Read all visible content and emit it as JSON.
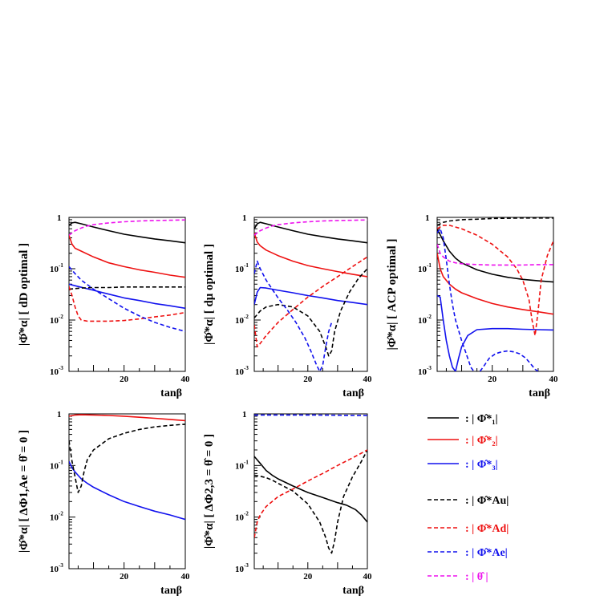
{
  "colors": {
    "phi1": "#000000",
    "phi2": "#ee1111",
    "phi3": "#1111ee",
    "phiAu": "#000000",
    "phiAd": "#ee1111",
    "phiAe": "#1111ee",
    "theta": "#ee11ee"
  },
  "legend": [
    {
      "key": "phi1",
      "dash": "solid",
      "text": ": | Φ̂*₁|"
    },
    {
      "key": "phi2",
      "dash": "solid",
      "text": ": | Φ̂*₂|"
    },
    {
      "key": "phi3",
      "dash": "solid",
      "text": ": | Φ̂*₃|"
    },
    {
      "key": "phiAu",
      "dash": "dashed",
      "text": ": | Φ̂*Au|"
    },
    {
      "key": "phiAd",
      "dash": "dashed",
      "text": ": | Φ̂*Ad|"
    },
    {
      "key": "phiAe",
      "dash": "dashed",
      "text": ": | Φ̂*Ae|"
    },
    {
      "key": "theta",
      "dash": "dashed",
      "text": ": | θ̂ |"
    }
  ],
  "chart_data": [
    {
      "type": "line",
      "title": "",
      "xlabel": "tanβ",
      "ylabel": "|Φ̂*α| [ dD optimal ]",
      "xlim": [
        2,
        40
      ],
      "ylim": [
        0.001,
        1
      ],
      "yscale": "log",
      "xticks": [
        "20",
        "40"
      ],
      "yticks": [
        "10-3",
        "10-2",
        "10-1",
        "1"
      ],
      "series": [
        {
          "key": "phi1",
          "x": [
            2,
            3,
            4,
            6,
            10,
            15,
            20,
            25,
            30,
            35,
            40
          ],
          "y": [
            0.7,
            0.78,
            0.8,
            0.75,
            0.65,
            0.55,
            0.47,
            0.42,
            0.38,
            0.35,
            0.32
          ]
        },
        {
          "key": "phi2",
          "x": [
            2,
            3,
            4,
            6,
            10,
            15,
            20,
            25,
            30,
            35,
            40
          ],
          "y": [
            0.45,
            0.3,
            0.25,
            0.22,
            0.17,
            0.13,
            0.11,
            0.095,
            0.085,
            0.075,
            0.068
          ]
        },
        {
          "key": "phi3",
          "x": [
            2,
            5,
            10,
            15,
            20,
            25,
            30,
            35,
            40
          ],
          "y": [
            0.05,
            0.045,
            0.038,
            0.032,
            0.027,
            0.024,
            0.021,
            0.019,
            0.017
          ]
        },
        {
          "key": "phiAu",
          "x": [
            2,
            4,
            6,
            10,
            15,
            20,
            30,
            40
          ],
          "y": [
            0.04,
            0.041,
            0.042,
            0.043,
            0.043,
            0.044,
            0.044,
            0.044
          ]
        },
        {
          "key": "phiAd",
          "x": [
            2,
            3,
            4,
            5,
            6,
            8,
            10,
            15,
            20,
            25,
            30,
            35,
            40
          ],
          "y": [
            0.045,
            0.03,
            0.018,
            0.012,
            0.01,
            0.0095,
            0.0095,
            0.0095,
            0.0098,
            0.0105,
            0.0115,
            0.0125,
            0.014
          ]
        },
        {
          "key": "phiAe",
          "x": [
            2,
            4,
            6,
            10,
            15,
            20,
            25,
            30,
            35,
            40
          ],
          "y": [
            0.11,
            0.08,
            0.06,
            0.04,
            0.026,
            0.017,
            0.012,
            0.009,
            0.0072,
            0.006
          ]
        },
        {
          "key": "theta",
          "x": [
            2,
            4,
            6,
            8,
            10,
            15,
            20,
            25,
            30,
            35,
            40
          ],
          "y": [
            0.45,
            0.55,
            0.62,
            0.68,
            0.72,
            0.78,
            0.82,
            0.85,
            0.87,
            0.88,
            0.89
          ]
        }
      ]
    },
    {
      "type": "line",
      "title": "",
      "xlabel": "tanβ",
      "ylabel": "|Φ̂*α| [ dμ optimal ]",
      "xlim": [
        2,
        40
      ],
      "ylim": [
        0.001,
        1
      ],
      "yscale": "log",
      "xticks": [
        "20",
        "40"
      ],
      "yticks": [
        "10-3",
        "10-2",
        "10-1",
        "1"
      ],
      "series": [
        {
          "key": "phi1",
          "x": [
            2,
            3,
            4,
            6,
            10,
            15,
            20,
            25,
            30,
            35,
            40
          ],
          "y": [
            0.6,
            0.75,
            0.8,
            0.75,
            0.65,
            0.55,
            0.47,
            0.42,
            0.38,
            0.35,
            0.32
          ]
        },
        {
          "key": "phi2",
          "x": [
            2,
            3,
            4,
            6,
            10,
            15,
            20,
            25,
            30,
            35,
            40
          ],
          "y": [
            0.5,
            0.33,
            0.28,
            0.23,
            0.18,
            0.14,
            0.115,
            0.1,
            0.088,
            0.078,
            0.07
          ]
        },
        {
          "key": "phi3",
          "x": [
            2,
            3,
            4,
            6,
            10,
            15,
            20,
            25,
            30,
            35,
            40
          ],
          "y": [
            0.02,
            0.035,
            0.043,
            0.042,
            0.038,
            0.034,
            0.03,
            0.027,
            0.024,
            0.022,
            0.02
          ]
        },
        {
          "key": "phiAu",
          "x": [
            2,
            4,
            6,
            10,
            15,
            20,
            24,
            26,
            27,
            28,
            29,
            31,
            34,
            37,
            40
          ],
          "y": [
            0.011,
            0.015,
            0.018,
            0.02,
            0.018,
            0.012,
            0.006,
            0.003,
            0.002,
            0.0025,
            0.006,
            0.015,
            0.035,
            0.065,
            0.1
          ]
        },
        {
          "key": "phiAd",
          "x": [
            2,
            3,
            4,
            6,
            10,
            15,
            20,
            25,
            30,
            35,
            40
          ],
          "y": [
            0.008,
            0.003,
            0.0035,
            0.005,
            0.009,
            0.016,
            0.028,
            0.045,
            0.07,
            0.11,
            0.17
          ]
        },
        {
          "key": "phiAe",
          "x": [
            2,
            3,
            4,
            6,
            8,
            10,
            13,
            16,
            19,
            21,
            23,
            24,
            25,
            26,
            27,
            28
          ],
          "y": [
            0.08,
            0.14,
            0.1,
            0.06,
            0.04,
            0.027,
            0.016,
            0.009,
            0.0045,
            0.0025,
            0.0013,
            0.001,
            0.0013,
            0.003,
            0.006,
            0.009
          ]
        },
        {
          "key": "theta",
          "x": [
            2,
            4,
            6,
            8,
            10,
            15,
            20,
            25,
            30,
            35,
            40
          ],
          "y": [
            0.45,
            0.55,
            0.62,
            0.68,
            0.72,
            0.78,
            0.82,
            0.85,
            0.87,
            0.88,
            0.89
          ]
        }
      ]
    },
    {
      "type": "line",
      "title": "",
      "xlabel": "tanβ",
      "ylabel": "|Φ̂*α| [ ACP optimal ]",
      "xlim": [
        2,
        40
      ],
      "ylim": [
        0.001,
        1
      ],
      "yscale": "log",
      "xticks": [
        "20",
        "40"
      ],
      "yticks": [
        "10-3",
        "10-2",
        "10-1",
        "1"
      ],
      "series": [
        {
          "key": "phi1",
          "x": [
            2,
            4,
            6,
            8,
            10,
            15,
            20,
            25,
            30,
            35,
            40
          ],
          "y": [
            0.6,
            0.35,
            0.22,
            0.16,
            0.13,
            0.095,
            0.078,
            0.068,
            0.062,
            0.058,
            0.055
          ]
        },
        {
          "key": "phi2",
          "x": [
            2,
            3,
            4,
            6,
            8,
            10,
            15,
            20,
            25,
            30,
            35,
            40
          ],
          "y": [
            0.2,
            0.1,
            0.07,
            0.05,
            0.04,
            0.034,
            0.026,
            0.021,
            0.018,
            0.016,
            0.0145,
            0.013
          ]
        },
        {
          "key": "phi3",
          "x": [
            2,
            3,
            4,
            5,
            6,
            7,
            8,
            9,
            10,
            12,
            15,
            20,
            25,
            30,
            35,
            40
          ],
          "y": [
            0.03,
            0.028,
            0.01,
            0.004,
            0.002,
            0.0012,
            0.001,
            0.0018,
            0.003,
            0.005,
            0.0065,
            0.0068,
            0.0068,
            0.0066,
            0.0065,
            0.0064
          ]
        },
        {
          "key": "phiAu",
          "x": [
            2,
            4,
            6,
            10,
            15,
            20,
            25,
            30,
            35,
            40
          ],
          "y": [
            0.7,
            0.8,
            0.85,
            0.9,
            0.92,
            0.95,
            0.96,
            0.97,
            0.97,
            0.97
          ]
        },
        {
          "key": "phiAd",
          "x": [
            2,
            4,
            6,
            10,
            15,
            20,
            25,
            28,
            30,
            32,
            33,
            34,
            35,
            36,
            38,
            40
          ],
          "y": [
            0.6,
            0.7,
            0.7,
            0.6,
            0.45,
            0.3,
            0.17,
            0.1,
            0.06,
            0.025,
            0.01,
            0.005,
            0.015,
            0.06,
            0.18,
            0.35
          ]
        },
        {
          "key": "phiAe",
          "x": [
            2,
            3,
            4,
            5,
            6,
            7,
            8,
            10,
            12,
            13,
            14
          ],
          "y": [
            0.5,
            0.6,
            0.4,
            0.15,
            0.05,
            0.02,
            0.01,
            0.004,
            0.0018,
            0.0012,
            0.001
          ]
        },
        {
          "key": "phiAe",
          "x": [
            16,
            17,
            19,
            21,
            23,
            25,
            27,
            29,
            31,
            33,
            34,
            35
          ],
          "y": [
            0.001,
            0.0012,
            0.0018,
            0.0022,
            0.0024,
            0.0025,
            0.0024,
            0.0022,
            0.0018,
            0.0013,
            0.0011,
            0.001
          ]
        },
        {
          "key": "theta",
          "x": [
            2,
            3,
            4,
            6,
            8,
            10,
            15,
            20,
            25,
            30,
            35,
            40
          ],
          "y": [
            0.3,
            0.2,
            0.17,
            0.14,
            0.13,
            0.125,
            0.12,
            0.118,
            0.118,
            0.118,
            0.12,
            0.12
          ]
        }
      ]
    },
    {
      "type": "line",
      "title": "",
      "xlabel": "tanβ",
      "ylabel": "|Φ̂*α| [ ΔΦ1,Ae = θ̂ = 0 ]",
      "xlim": [
        2,
        40
      ],
      "ylim": [
        0.001,
        1
      ],
      "yscale": "log",
      "xticks": [
        "20",
        "40"
      ],
      "yticks": [
        "10-3",
        "10-2",
        "10-1",
        "1"
      ],
      "series": [
        {
          "key": "phi2",
          "x": [
            2,
            4,
            6,
            10,
            15,
            20,
            25,
            30,
            35,
            40
          ],
          "y": [
            0.9,
            0.95,
            0.96,
            0.95,
            0.93,
            0.9,
            0.86,
            0.82,
            0.78,
            0.74
          ]
        },
        {
          "key": "phi3",
          "x": [
            2,
            3,
            4,
            6,
            8,
            10,
            15,
            20,
            25,
            30,
            35,
            40
          ],
          "y": [
            0.12,
            0.09,
            0.075,
            0.055,
            0.045,
            0.038,
            0.027,
            0.02,
            0.016,
            0.013,
            0.011,
            0.009
          ]
        },
        {
          "key": "phiAu",
          "x": [
            2,
            3,
            4,
            5,
            6,
            7,
            8,
            10,
            15,
            20,
            25,
            30,
            35,
            40
          ],
          "y": [
            0.3,
            0.12,
            0.06,
            0.03,
            0.04,
            0.08,
            0.13,
            0.2,
            0.33,
            0.42,
            0.5,
            0.56,
            0.6,
            0.63
          ]
        }
      ]
    },
    {
      "type": "line",
      "title": "",
      "xlabel": "tanβ",
      "ylabel": "|Φ̂*α| [ ΔΦ2,3 = θ̂ = 0 ]",
      "xlim": [
        2,
        40
      ],
      "ylim": [
        0.001,
        1
      ],
      "yscale": "log",
      "xticks": [
        "20",
        "40"
      ],
      "yticks": [
        "10-3",
        "10-2",
        "10-1",
        "1"
      ],
      "series": [
        {
          "key": "phi1",
          "x": [
            2,
            4,
            6,
            8,
            10,
            15,
            20,
            25,
            30,
            33,
            36,
            38,
            40
          ],
          "y": [
            0.15,
            0.11,
            0.08,
            0.065,
            0.055,
            0.04,
            0.03,
            0.024,
            0.019,
            0.017,
            0.014,
            0.011,
            0.008
          ]
        },
        {
          "key": "phiAu",
          "x": [
            2,
            4,
            6,
            8,
            10,
            15,
            20,
            24,
            26,
            27,
            28,
            29,
            30,
            32,
            35,
            38,
            40
          ],
          "y": [
            0.065,
            0.062,
            0.058,
            0.052,
            0.045,
            0.032,
            0.018,
            0.008,
            0.004,
            0.0025,
            0.002,
            0.0035,
            0.008,
            0.025,
            0.06,
            0.12,
            0.2
          ]
        },
        {
          "key": "phiAd",
          "x": [
            2,
            3,
            4,
            6,
            8,
            10,
            15,
            20,
            25,
            30,
            35,
            40
          ],
          "y": [
            0.004,
            0.008,
            0.011,
            0.016,
            0.02,
            0.025,
            0.035,
            0.05,
            0.07,
            0.1,
            0.14,
            0.2
          ]
        },
        {
          "key": "phiAe",
          "x": [
            2,
            10,
            20,
            30,
            40
          ],
          "y": [
            0.95,
            0.95,
            0.95,
            0.94,
            0.93
          ]
        }
      ]
    }
  ]
}
